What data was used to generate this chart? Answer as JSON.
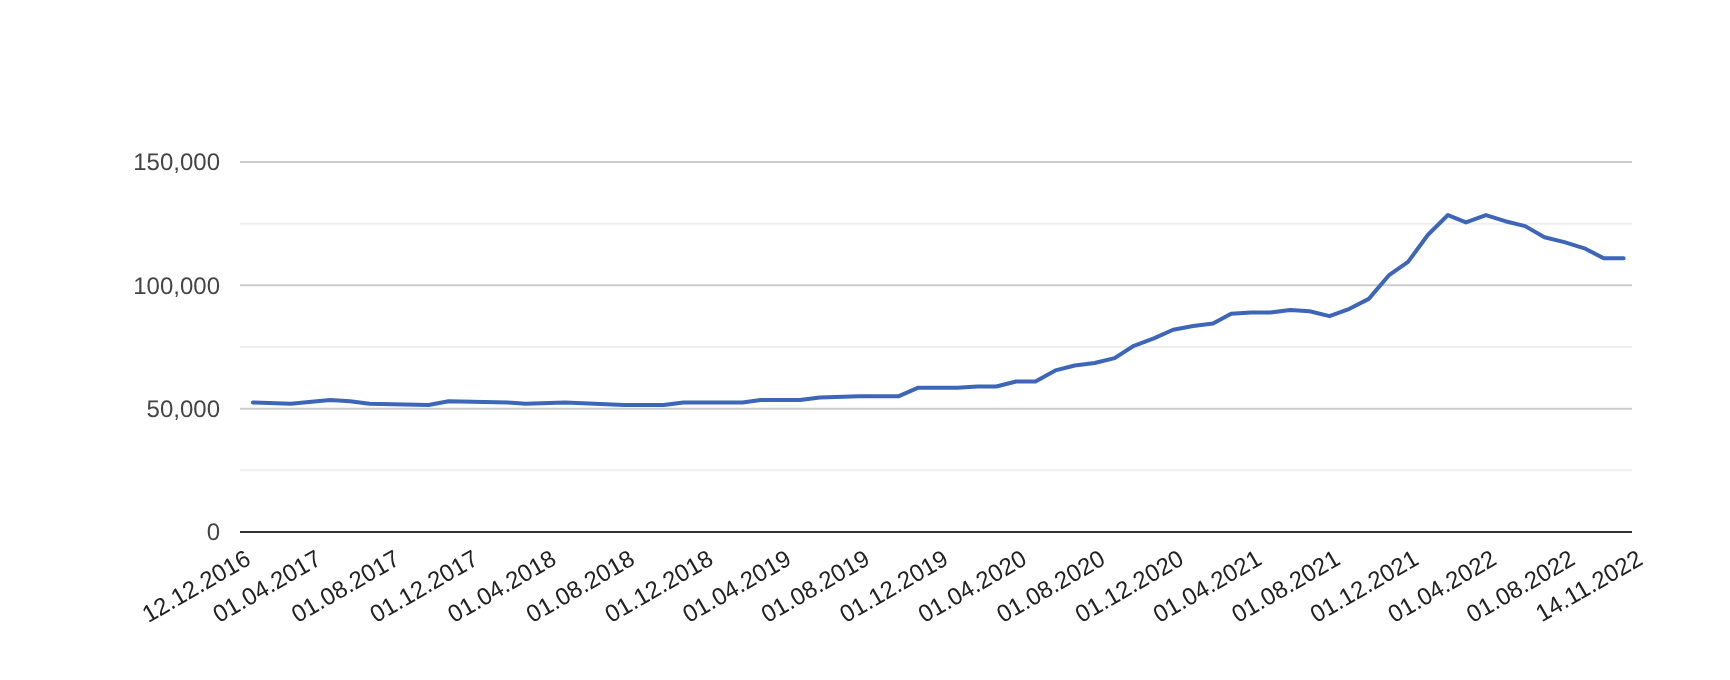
{
  "chart_data": {
    "type": "line",
    "grid": "y",
    "xlim": [
      "2016-12-12",
      "2022-11-14"
    ],
    "ylim": [
      0,
      150000
    ],
    "xticks": [
      {
        "value": "2016-12-12",
        "label": "12.12.2016"
      },
      {
        "value": "2017-04-01",
        "label": "01.04.2017"
      },
      {
        "value": "2017-08-01",
        "label": "01.08.2017"
      },
      {
        "value": "2017-12-01",
        "label": "01.12.2017"
      },
      {
        "value": "2018-04-01",
        "label": "01.04.2018"
      },
      {
        "value": "2018-08-01",
        "label": "01.08.2018"
      },
      {
        "value": "2018-12-01",
        "label": "01.12.2018"
      },
      {
        "value": "2019-04-01",
        "label": "01.04.2019"
      },
      {
        "value": "2019-08-01",
        "label": "01.08.2019"
      },
      {
        "value": "2019-12-01",
        "label": "01.12.2019"
      },
      {
        "value": "2020-04-01",
        "label": "01.04.2020"
      },
      {
        "value": "2020-08-01",
        "label": "01.08.2020"
      },
      {
        "value": "2020-12-01",
        "label": "01.12.2020"
      },
      {
        "value": "2021-04-01",
        "label": "01.04.2021"
      },
      {
        "value": "2021-08-01",
        "label": "01.08.2021"
      },
      {
        "value": "2021-12-01",
        "label": "01.12.2021"
      },
      {
        "value": "2022-04-01",
        "label": "01.04.2022"
      },
      {
        "value": "2022-08-01",
        "label": "01.08.2022"
      },
      {
        "value": "2022-11-14",
        "label": "14.11.2022"
      }
    ],
    "yticks": [
      {
        "value": 0,
        "label": "0"
      },
      {
        "value": 25000,
        "label": null
      },
      {
        "value": 50000,
        "label": "50,000"
      },
      {
        "value": 75000,
        "label": null
      },
      {
        "value": 100000,
        "label": "100,000"
      },
      {
        "value": 125000,
        "label": null
      },
      {
        "value": 150000,
        "label": "150,000"
      }
    ],
    "x": [
      "2017-01",
      "2017-03",
      "2017-05",
      "2017-06",
      "2017-07",
      "2017-10",
      "2017-11",
      "2018-02",
      "2018-03",
      "2018-05",
      "2018-08",
      "2018-10",
      "2018-11",
      "2019-02",
      "2019-03",
      "2019-05",
      "2019-06",
      "2019-08",
      "2019-10",
      "2019-11",
      "2020-01",
      "2020-02",
      "2020-03",
      "2020-04",
      "2020-05",
      "2020-06",
      "2020-07",
      "2020-08",
      "2020-09",
      "2020-10",
      "2020-11",
      "2020-12",
      "2021-01",
      "2021-02",
      "2021-03",
      "2021-04",
      "2021-05",
      "2021-06",
      "2021-07",
      "2021-08",
      "2021-09",
      "2021-10",
      "2021-11",
      "2021-12",
      "2022-01",
      "2022-02",
      "2022-03",
      "2022-04",
      "2022-05",
      "2022-06",
      "2022-07",
      "2022-08",
      "2022-09",
      "2022-10",
      "2022-11"
    ],
    "series": [
      {
        "color": "#3d66b8",
        "values": [
          52500,
          52000,
          53500,
          53000,
          52000,
          51500,
          53000,
          52500,
          52000,
          52500,
          51500,
          51500,
          52500,
          52500,
          53500,
          53500,
          54500,
          55000,
          55000,
          58500,
          58500,
          59000,
          59000,
          61000,
          61000,
          65500,
          67500,
          68500,
          70500,
          75500,
          78500,
          82000,
          83500,
          84500,
          88500,
          89000,
          89000,
          90000,
          89500,
          87500,
          90500,
          94500,
          104000,
          109500,
          120500,
          128500,
          125500,
          128500,
          126000,
          124000,
          119500,
          117500,
          115000,
          111000,
          111000
        ]
      }
    ]
  }
}
